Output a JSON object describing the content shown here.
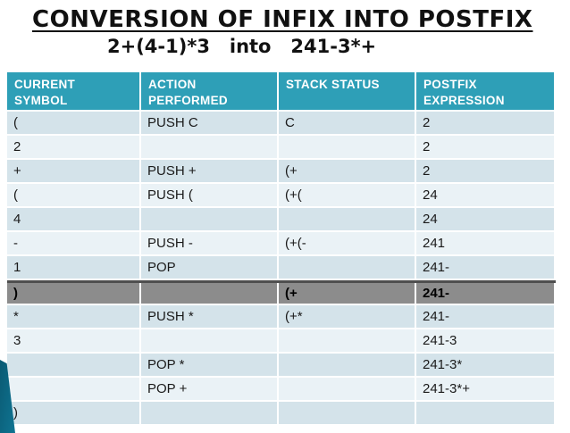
{
  "slide": {
    "title": "CONVERSION OF INFIX INTO POSTFIX",
    "subtitle": "2+(4-1)*3   into   241-3*+"
  },
  "table": {
    "columns": [
      "CURRENT\nSYMBOL",
      "ACTION\nPERFORMED",
      "STACK STATUS",
      "POSTFIX\nEXPRESSION"
    ],
    "rows": [
      {
        "symbol": "(",
        "action": "PUSH C",
        "stack": "C",
        "postfix": "2",
        "highlight": false
      },
      {
        "symbol": "2",
        "action": "",
        "stack": "",
        "postfix": "2",
        "highlight": false
      },
      {
        "symbol": "+",
        "action": "PUSH +",
        "stack": "(+",
        "postfix": "2",
        "highlight": false
      },
      {
        "symbol": "(",
        "action": "PUSH (",
        "stack": "(+(",
        "postfix": "24",
        "highlight": false
      },
      {
        "symbol": "4",
        "action": "",
        "stack": "",
        "postfix": "24",
        "highlight": false
      },
      {
        "symbol": "-",
        "action": "PUSH -",
        "stack": "(+(-",
        "postfix": "241",
        "highlight": false
      },
      {
        "symbol": "1",
        "action": "POP",
        "stack": "",
        "postfix": "241-",
        "highlight": false
      },
      {
        "symbol": ")",
        "action": "",
        "stack": "(+",
        "postfix": "241-",
        "highlight": true
      },
      {
        "symbol": "*",
        "action": "PUSH *",
        "stack": "(+*",
        "postfix": "241-",
        "highlight": false
      },
      {
        "symbol": "3",
        "action": "",
        "stack": "",
        "postfix": "241-3",
        "highlight": false
      },
      {
        "symbol": "",
        "action": "POP *",
        "stack": "",
        "postfix": "241-3*",
        "highlight": false
      },
      {
        "symbol": "",
        "action": "POP +",
        "stack": "",
        "postfix": "241-3*+",
        "highlight": false
      },
      {
        "symbol": ")",
        "action": "",
        "stack": "",
        "postfix": "",
        "highlight": false
      }
    ]
  },
  "colors": {
    "header_bg": "#2E9FB7",
    "row_odd": "#D4E3EA",
    "row_even": "#EAF2F6",
    "highlight_bg": "#8C8C8C",
    "highlight_border": "#4F4F4F",
    "ribbon": "#0C6781",
    "header_text": "#FFFFFF",
    "body_text": "#1A1A1A"
  }
}
